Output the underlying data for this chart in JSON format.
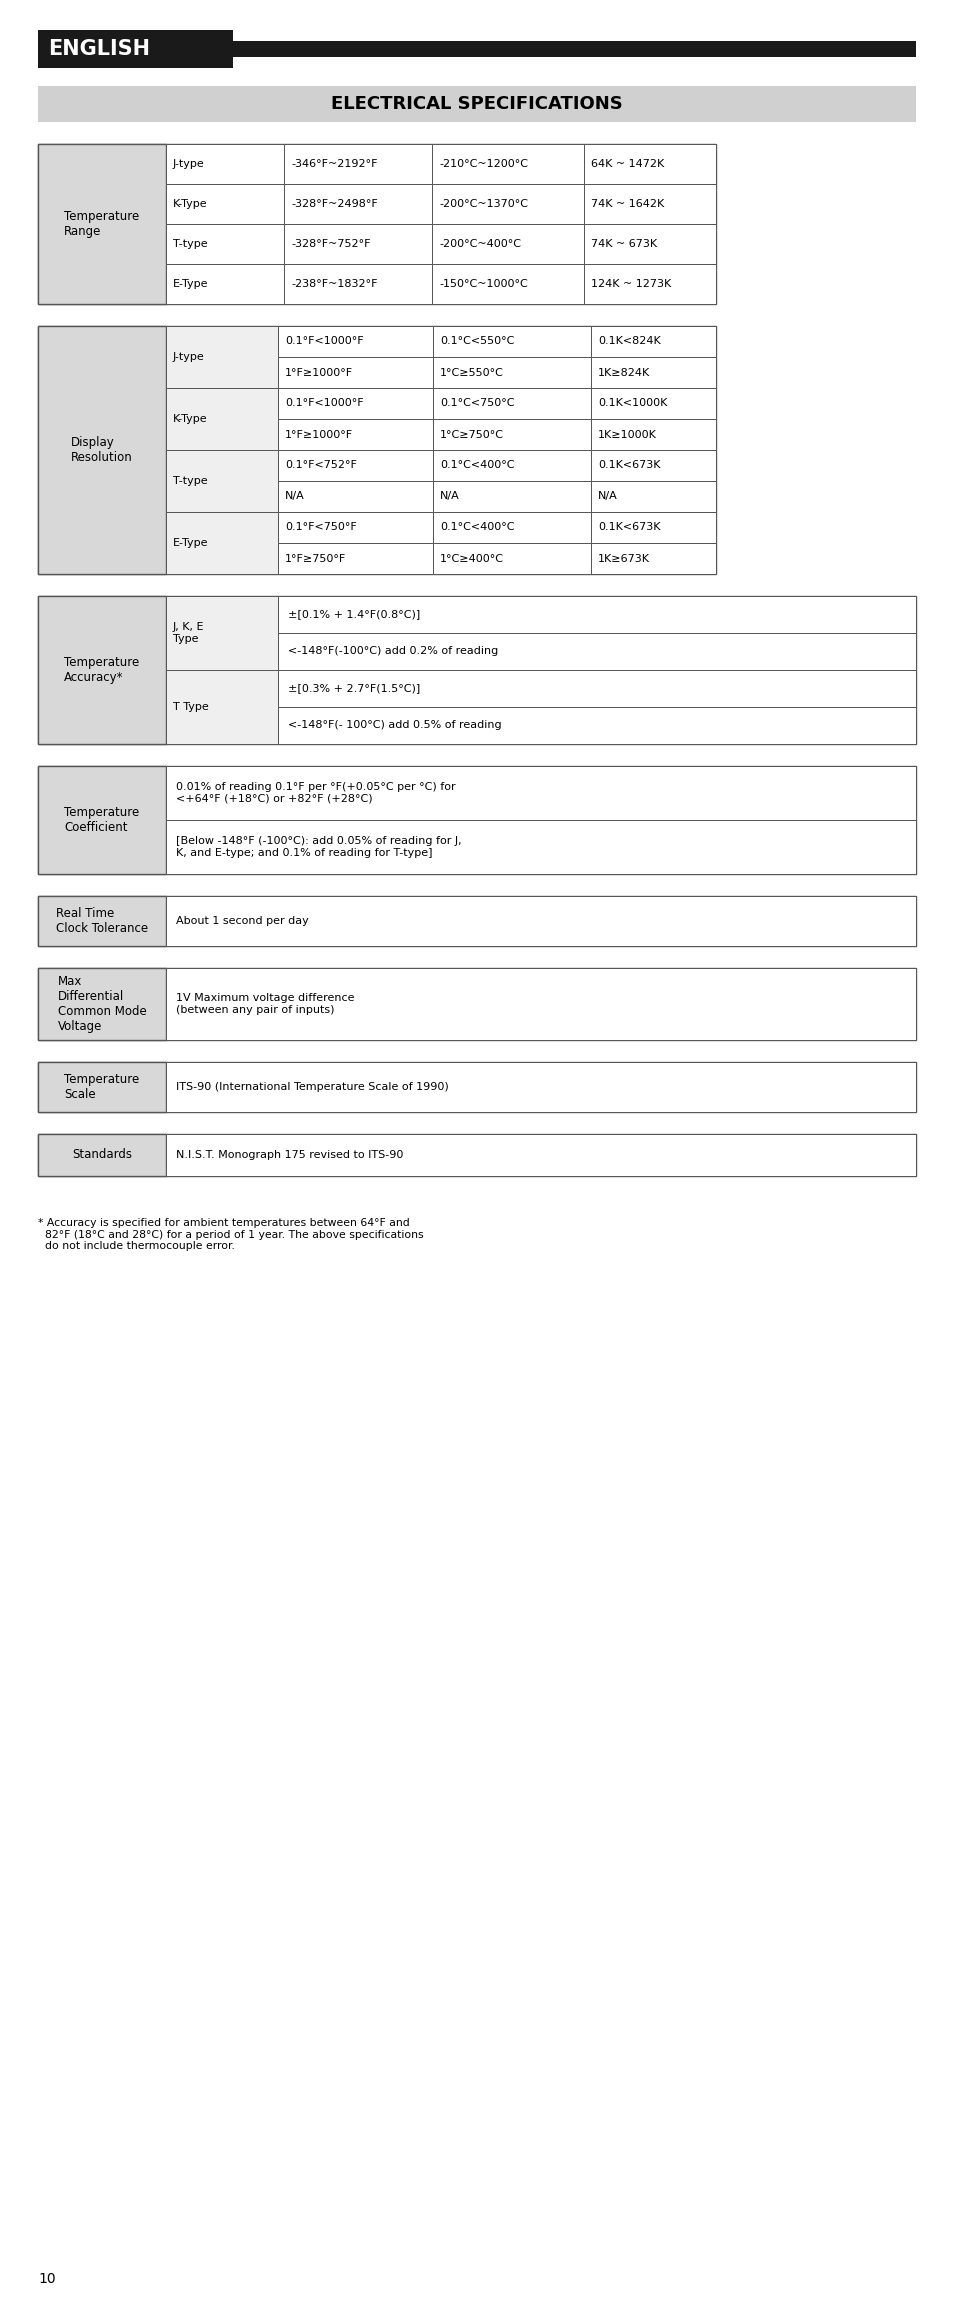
{
  "title": "ELECTRICAL SPECIFICATIONS",
  "header_label": "ENGLISH",
  "bg_color": "#ffffff",
  "header_bg": "#1a1a1a",
  "header_text_color": "#ffffff",
  "title_bg": "#d0d0d0",
  "title_text_color": "#000000",
  "cell_bg_left": "#d8d8d8",
  "cell_bg_white": "#ffffff",
  "border_color": "#555555",
  "font_size": 9,
  "temp_range_rows": [
    [
      "J-type",
      "-346°F~2192°F",
      "-210°C~1200°C",
      "64K ~ 1472K"
    ],
    [
      "K-Type",
      "-328°F~2498°F",
      "-200°C~1370°C",
      "74K ~ 1642K"
    ],
    [
      "T-type",
      "-328°F~752°F",
      "-200°C~400°C",
      "74K ~ 673K"
    ],
    [
      "E-Type",
      "-238°F~1832°F",
      "-150°C~1000°C",
      "124K ~ 1273K"
    ]
  ],
  "disp_res_rows": [
    [
      "J-type",
      "0.1°F<1000°F",
      "0.1°C<550°C",
      "0.1K<824K"
    ],
    [
      "",
      "1°F≥1000°F",
      "1°C≥550°C",
      "1K≥824K"
    ],
    [
      "K-Type",
      "0.1°F<1000°F",
      "0.1°C<750°C",
      "0.1K<1000K"
    ],
    [
      "",
      "1°F≥1000°F",
      "1°C≥750°C",
      "1K≥1000K"
    ],
    [
      "T-type",
      "0.1°F<752°F",
      "0.1°C<400°C",
      "0.1K<673K"
    ],
    [
      "",
      "N/A",
      "N/A",
      "N/A"
    ],
    [
      "E-Type",
      "0.1°F<750°F",
      "0.1°C<400°C",
      "0.1K<673K"
    ],
    [
      "",
      "1°F≥750°F",
      "1°C≥400°C",
      "1K≥673K"
    ]
  ],
  "temp_acc_rows": [
    [
      "J, K, E\nType",
      "±[0.1% + 1.4°F(0.8°C)]"
    ],
    [
      "",
      "<-148°F(-100°C) add 0.2% of reading"
    ],
    [
      "T Type",
      "±[0.3% + 2.7°F(1.5°C)]"
    ],
    [
      "",
      "<-148°F(- 100°C) add 0.5% of reading"
    ]
  ],
  "temp_coeff_rows": [
    "0.01% of reading 0.1°F per °F(+0.05°C per °C) for\n<+64°F (+18°C) or +82°F (+28°C)",
    "[Below -148°F (-100°C): add 0.05% of reading for J,\nK, and E-type; and 0.1% of reading for T-type]"
  ],
  "footnote_line1": "* Accuracy is specified for ambient temperatures between 64°F and",
  "footnote_line2": "  82°F (18°C and 28°C) for a period of 1 year. The above specifications",
  "footnote_line3": "  do not include thermocouple error.",
  "page_number": "10"
}
